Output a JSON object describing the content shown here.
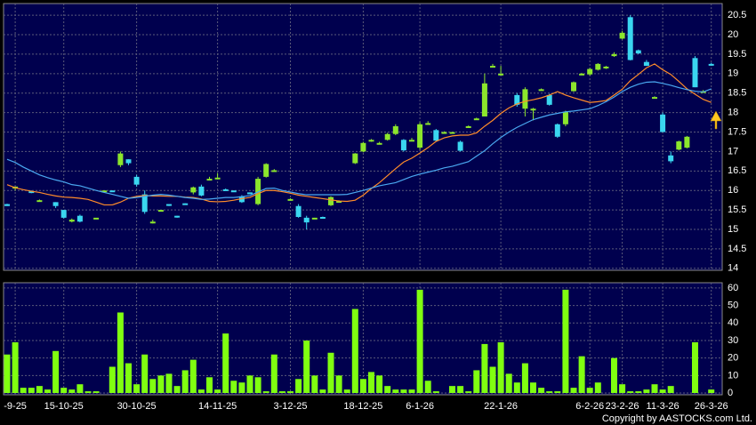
{
  "chart_data": [
    {
      "type": "candlestick",
      "open": [
        15.65,
        16.05,
        null,
        15.98,
        15.75,
        null,
        15.7,
        15.5,
        15.2,
        15.35,
        null,
        15.3,
        16.0,
        16.0,
        16.65,
        16.8,
        16.35,
        15.9,
        15.2,
        15.5,
        15.65,
        15.35,
        15.67,
        15.95,
        16.1,
        16.3,
        16.3,
        16.03,
        16.0,
        15.85,
        15.95,
        15.65,
        16.35,
        16.52,
        null,
        15.78,
        15.6,
        15.3,
        15.3,
        15.32,
        15.62,
        15.72,
        null,
        16.7,
        17.0,
        17.28,
        17.22,
        17.3,
        17.45,
        17.3,
        17.3,
        17.1,
        17.72,
        17.55,
        17.5,
        17.5,
        17.25,
        17.65,
        17.85,
        17.9,
        19.2,
        19.0,
        null,
        18.45,
        18.1,
        18.1,
        18.6,
        18.45,
        17.7,
        17.7,
        18.55,
        19.0,
        18.98,
        19.1,
        19.15,
        19.45,
        19.9,
        20.45,
        19.6,
        19.3,
        18.4,
        17.95,
        16.9,
        17.05,
        17.1,
        19.4,
        18.55,
        19.25
      ],
      "high": [
        15.66,
        16.1,
        null,
        16.0,
        15.77,
        null,
        15.7,
        15.5,
        15.28,
        15.38,
        null,
        15.3,
        16.0,
        16.0,
        17.0,
        16.8,
        16.4,
        16.0,
        15.25,
        15.5,
        15.65,
        15.35,
        15.67,
        16.1,
        16.15,
        16.35,
        16.45,
        16.05,
        16.0,
        15.88,
        15.95,
        16.35,
        16.7,
        16.55,
        null,
        15.8,
        15.65,
        15.35,
        15.3,
        15.33,
        15.85,
        15.75,
        null,
        16.96,
        17.25,
        17.32,
        17.25,
        17.48,
        17.7,
        17.32,
        17.35,
        17.75,
        17.78,
        17.58,
        17.52,
        17.5,
        17.28,
        17.67,
        17.87,
        19.0,
        19.25,
        19.2,
        null,
        18.5,
        18.65,
        18.12,
        18.62,
        18.48,
        17.72,
        18.05,
        18.8,
        19.02,
        19.15,
        19.27,
        19.2,
        19.55,
        20.1,
        20.5,
        19.62,
        19.35,
        18.42,
        18.0,
        17.0,
        17.28,
        17.4,
        19.45,
        18.58,
        19.28
      ],
      "low": [
        15.6,
        16.0,
        null,
        15.93,
        15.73,
        null,
        15.55,
        15.28,
        15.18,
        15.18,
        null,
        15.3,
        16.0,
        15.98,
        16.6,
        16.65,
        16.1,
        15.4,
        15.15,
        15.48,
        15.6,
        15.3,
        15.65,
        15.9,
        15.85,
        16.28,
        16.3,
        16.0,
        15.97,
        15.68,
        15.92,
        15.62,
        16.33,
        16.5,
        null,
        15.75,
        15.3,
        15.0,
        15.28,
        15.3,
        15.6,
        15.7,
        null,
        16.68,
        16.98,
        17.25,
        17.2,
        17.28,
        17.42,
        17.0,
        17.28,
        17.05,
        17.7,
        17.25,
        17.5,
        17.48,
        17.0,
        17.65,
        17.83,
        17.9,
        19.18,
        18.95,
        null,
        18.15,
        17.9,
        17.8,
        18.58,
        18.18,
        17.35,
        17.65,
        18.53,
        18.98,
        18.95,
        19.08,
        19.12,
        19.43,
        19.88,
        19.34,
        19.5,
        19.2,
        18.4,
        17.5,
        16.7,
        17.03,
        17.08,
        18.65,
        18.52,
        19.2
      ],
      "close": [
        15.6,
        16.1,
        null,
        15.95,
        15.75,
        null,
        15.6,
        15.3,
        15.25,
        15.2,
        null,
        15.3,
        16.0,
        15.98,
        16.95,
        16.7,
        16.15,
        15.45,
        15.2,
        15.5,
        15.62,
        15.32,
        15.65,
        16.08,
        15.87,
        16.3,
        16.33,
        16.02,
        15.98,
        15.7,
        15.93,
        16.3,
        16.68,
        16.52,
        null,
        15.78,
        15.32,
        15.18,
        15.3,
        15.3,
        15.83,
        15.73,
        null,
        16.95,
        17.22,
        17.3,
        17.22,
        17.45,
        17.65,
        17.03,
        17.3,
        17.7,
        17.73,
        17.28,
        17.5,
        17.5,
        17.02,
        17.65,
        17.85,
        18.75,
        19.2,
        19.0,
        null,
        18.2,
        18.6,
        18.1,
        18.6,
        18.2,
        17.38,
        18.02,
        18.78,
        19.0,
        19.12,
        19.25,
        19.18,
        19.5,
        20.05,
        19.35,
        19.52,
        19.2,
        18.4,
        17.5,
        16.75,
        17.26,
        17.38,
        18.65,
        18.55,
        19.22
      ],
      "up_color": "#8ce62c",
      "down_color": "#3ad6f0",
      "lines": [
        {
          "color": "#ff8c2a",
          "values": [
            16.15,
            16.07,
            16.02,
            15.98,
            15.95,
            15.9,
            15.86,
            15.83,
            15.82,
            15.8,
            15.77,
            15.7,
            15.63,
            15.63,
            15.7,
            15.8,
            15.85,
            15.87,
            15.86,
            15.86,
            15.85,
            15.85,
            15.83,
            15.82,
            15.78,
            15.72,
            15.71,
            15.72,
            15.75,
            15.79,
            15.82,
            15.92,
            16.0,
            16.0,
            15.97,
            15.93,
            15.88,
            15.85,
            15.82,
            15.79,
            15.76,
            15.73,
            15.72,
            15.75,
            15.88,
            16.05,
            16.2,
            16.38,
            16.56,
            16.73,
            16.83,
            16.96,
            17.1,
            17.26,
            17.35,
            17.4,
            17.42,
            17.42,
            17.48,
            17.65,
            17.8,
            17.98,
            18.12,
            18.22,
            18.29,
            18.33,
            18.38,
            18.45,
            18.54,
            18.45,
            18.38,
            18.32,
            18.26,
            18.28,
            18.31,
            18.45,
            18.6,
            18.82,
            18.98,
            19.15,
            19.25,
            19.1,
            18.98,
            18.8,
            18.61,
            18.47,
            18.34,
            18.26
          ]
        },
        {
          "color": "#4aa8f0",
          "values": [
            16.8,
            16.72,
            16.6,
            16.5,
            16.4,
            16.33,
            16.27,
            16.22,
            16.15,
            16.12,
            16.06,
            16.0,
            15.95,
            15.9,
            15.85,
            15.8,
            15.82,
            15.85,
            15.88,
            15.9,
            15.88,
            15.85,
            15.82,
            15.8,
            15.77,
            15.78,
            15.8,
            15.82,
            15.82,
            15.84,
            15.87,
            15.96,
            16.05,
            16.06,
            16.0,
            15.96,
            15.92,
            15.89,
            15.89,
            15.89,
            15.89,
            15.89,
            15.9,
            15.95,
            16.0,
            16.06,
            16.12,
            16.16,
            16.2,
            16.28,
            16.36,
            16.42,
            16.47,
            16.52,
            16.58,
            16.62,
            16.68,
            16.74,
            16.88,
            17.02,
            17.2,
            17.36,
            17.5,
            17.62,
            17.72,
            17.82,
            17.88,
            17.94,
            17.98,
            18.02,
            18.04,
            18.07,
            18.1,
            18.18,
            18.28,
            18.4,
            18.54,
            18.65,
            18.73,
            18.78,
            18.79,
            18.75,
            18.7,
            18.64,
            18.59,
            18.55,
            18.53,
            18.61
          ]
        }
      ],
      "ylim": [
        13.95,
        20.8
      ],
      "yticks": [
        14,
        14.5,
        15,
        15.5,
        16,
        16.5,
        17,
        17.5,
        18,
        18.5,
        19,
        19.5,
        20,
        20.5
      ],
      "grid": true
    },
    {
      "type": "bar",
      "categories": [
        null,
        "-9-25",
        null,
        null,
        null,
        null,
        null,
        "15-10-25",
        null,
        null,
        null,
        null,
        null,
        null,
        null,
        null,
        "30-10-25",
        null,
        null,
        null,
        null,
        null,
        null,
        null,
        null,
        null,
        "14-11-25",
        null,
        null,
        null,
        null,
        null,
        null,
        null,
        null,
        "3-12-25",
        null,
        null,
        null,
        null,
        null,
        null,
        null,
        null,
        "18-12-25",
        null,
        null,
        null,
        null,
        null,
        null,
        "6-1-26",
        null,
        null,
        null,
        null,
        null,
        null,
        null,
        null,
        null,
        "22-1-26",
        null,
        null,
        null,
        null,
        null,
        null,
        null,
        null,
        null,
        null,
        "6-2-26",
        null,
        null,
        null,
        "23-2-26",
        null,
        null,
        null,
        null,
        "11-3-26",
        null,
        null,
        null,
        null,
        null,
        "26-3-26"
      ],
      "values": [
        22,
        29,
        3,
        3,
        4,
        2,
        24,
        3,
        2,
        5,
        1,
        1,
        null,
        15,
        46,
        17,
        5,
        22,
        8,
        10,
        11,
        4,
        13,
        19,
        2,
        9,
        2,
        34,
        7,
        6,
        10,
        9,
        1,
        22,
        1,
        1,
        8,
        30,
        10,
        2,
        23,
        10,
        2,
        48,
        8,
        12,
        10,
        4,
        2,
        2,
        2,
        59,
        7,
        1,
        null,
        4,
        4,
        1,
        13,
        28,
        15,
        29,
        11,
        6,
        17,
        6,
        3,
        1,
        1,
        59,
        3,
        21,
        3,
        6,
        null,
        20,
        5,
        1,
        1,
        2,
        5,
        2,
        4,
        0,
        null,
        29,
        null,
        2
      ],
      "color": "#80ff10",
      "ylim": [
        -1,
        63
      ],
      "yticks": [
        0,
        10,
        20,
        30,
        40,
        50,
        60
      ],
      "grid": true
    }
  ],
  "copyright": "Copyright by AASTOCKS.com Ltd."
}
